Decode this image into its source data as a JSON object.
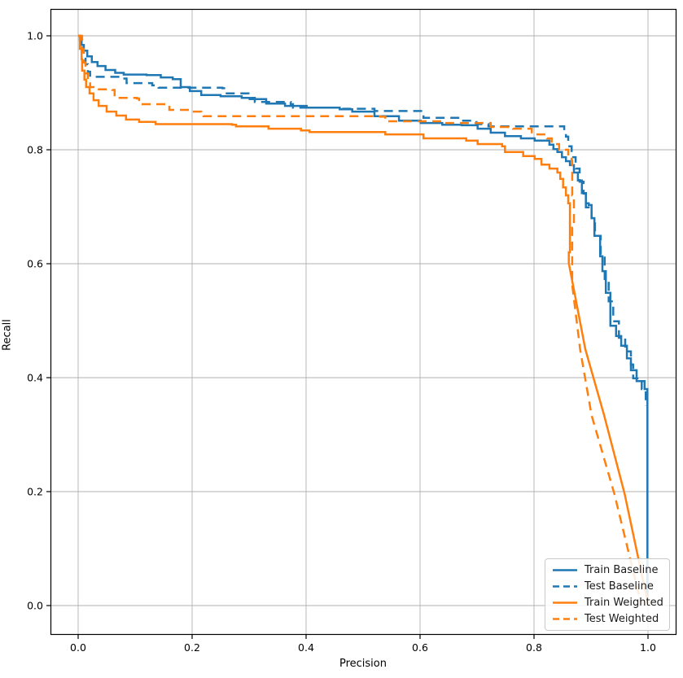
{
  "figure": {
    "background": "#ffffff"
  },
  "axes": {
    "xlabel": "Precision",
    "ylabel": "Recall",
    "x_tick_labels": [
      "0.0",
      "0.2",
      "0.4",
      "0.6",
      "0.8",
      "1.0"
    ],
    "y_tick_labels": [
      "0.0",
      "0.2",
      "0.4",
      "0.6",
      "0.8",
      "1.0"
    ]
  },
  "colors": {
    "baseline": "#1f77b4",
    "weighted": "#ff7f0e",
    "grid": "#b0b0b0",
    "spine": "#000000"
  },
  "chart_data": {
    "type": "line",
    "title": "",
    "xlabel": "Precision",
    "ylabel": "Recall",
    "xlim": [
      -0.05,
      1.05
    ],
    "ylim": [
      -0.05,
      1.05
    ],
    "xticks": [
      0.0,
      0.2,
      0.4,
      0.6,
      0.8,
      1.0
    ],
    "yticks": [
      0.0,
      0.2,
      0.4,
      0.6,
      0.8,
      1.0
    ],
    "grid": true,
    "legend_position": "lower right",
    "series": [
      {
        "name": "Train Baseline",
        "color": "#1f77b4",
        "style": "solid",
        "points": [
          [
            0.0,
            1.0
          ],
          [
            0.003,
            0.993
          ],
          [
            0.006,
            0.984
          ],
          [
            0.01,
            0.974
          ],
          [
            0.016,
            0.964
          ],
          [
            0.024,
            0.954
          ],
          [
            0.034,
            0.947
          ],
          [
            0.048,
            0.94
          ],
          [
            0.065,
            0.935
          ],
          [
            0.08,
            0.932
          ],
          [
            0.12,
            0.931
          ],
          [
            0.145,
            0.927
          ],
          [
            0.166,
            0.924
          ],
          [
            0.18,
            0.91
          ],
          [
            0.196,
            0.903
          ],
          [
            0.216,
            0.896
          ],
          [
            0.25,
            0.894
          ],
          [
            0.287,
            0.891
          ],
          [
            0.301,
            0.889
          ],
          [
            0.33,
            0.881
          ],
          [
            0.363,
            0.877
          ],
          [
            0.401,
            0.874
          ],
          [
            0.459,
            0.871
          ],
          [
            0.481,
            0.867
          ],
          [
            0.52,
            0.859
          ],
          [
            0.563,
            0.851
          ],
          [
            0.601,
            0.847
          ],
          [
            0.639,
            0.844
          ],
          [
            0.673,
            0.843
          ],
          [
            0.701,
            0.837
          ],
          [
            0.724,
            0.83
          ],
          [
            0.749,
            0.824
          ],
          [
            0.777,
            0.82
          ],
          [
            0.801,
            0.816
          ],
          [
            0.827,
            0.809
          ],
          [
            0.834,
            0.801
          ],
          [
            0.841,
            0.796
          ],
          [
            0.849,
            0.787
          ],
          [
            0.856,
            0.78
          ],
          [
            0.863,
            0.773
          ],
          [
            0.87,
            0.76
          ],
          [
            0.877,
            0.746
          ],
          [
            0.884,
            0.724
          ],
          [
            0.891,
            0.706
          ],
          [
            0.896,
            0.703
          ],
          [
            0.901,
            0.68
          ],
          [
            0.906,
            0.649
          ],
          [
            0.916,
            0.613
          ],
          [
            0.92,
            0.587
          ],
          [
            0.926,
            0.549
          ],
          [
            0.934,
            0.491
          ],
          [
            0.944,
            0.473
          ],
          [
            0.953,
            0.456
          ],
          [
            0.963,
            0.434
          ],
          [
            0.97,
            0.413
          ],
          [
            0.98,
            0.394
          ],
          [
            0.994,
            0.38
          ],
          [
            0.999,
            0.377
          ],
          [
            0.999,
            0.01
          ]
        ]
      },
      {
        "name": "Test Baseline",
        "color": "#1f77b4",
        "style": "dashed",
        "points": [
          [
            0.0,
            1.0
          ],
          [
            0.004,
            0.99
          ],
          [
            0.007,
            0.975
          ],
          [
            0.01,
            0.963
          ],
          [
            0.013,
            0.95
          ],
          [
            0.017,
            0.937
          ],
          [
            0.021,
            0.928
          ],
          [
            0.079,
            0.925
          ],
          [
            0.085,
            0.917
          ],
          [
            0.13,
            0.913
          ],
          [
            0.141,
            0.909
          ],
          [
            0.253,
            0.908
          ],
          [
            0.259,
            0.899
          ],
          [
            0.299,
            0.896
          ],
          [
            0.303,
            0.891
          ],
          [
            0.31,
            0.884
          ],
          [
            0.373,
            0.88
          ],
          [
            0.377,
            0.874
          ],
          [
            0.459,
            0.872
          ],
          [
            0.52,
            0.868
          ],
          [
            0.606,
            0.856
          ],
          [
            0.673,
            0.851
          ],
          [
            0.699,
            0.845
          ],
          [
            0.72,
            0.841
          ],
          [
            0.853,
            0.834
          ],
          [
            0.856,
            0.823
          ],
          [
            0.86,
            0.806
          ],
          [
            0.866,
            0.787
          ],
          [
            0.873,
            0.767
          ],
          [
            0.88,
            0.744
          ],
          [
            0.887,
            0.723
          ],
          [
            0.891,
            0.699
          ],
          [
            0.901,
            0.68
          ],
          [
            0.907,
            0.649
          ],
          [
            0.917,
            0.616
          ],
          [
            0.924,
            0.573
          ],
          [
            0.931,
            0.534
          ],
          [
            0.939,
            0.499
          ],
          [
            0.949,
            0.47
          ],
          [
            0.96,
            0.446
          ],
          [
            0.97,
            0.423
          ],
          [
            0.974,
            0.399
          ],
          [
            0.989,
            0.38
          ],
          [
            0.996,
            0.363
          ],
          [
            0.996,
            0.35
          ]
        ]
      },
      {
        "name": "Train Weighted",
        "color": "#ff7f0e",
        "style": "solid",
        "straight_from": 36,
        "points": [
          [
            0.0,
            1.0
          ],
          [
            0.003,
            0.977
          ],
          [
            0.006,
            0.959
          ],
          [
            0.007,
            0.939
          ],
          [
            0.011,
            0.923
          ],
          [
            0.014,
            0.91
          ],
          [
            0.02,
            0.899
          ],
          [
            0.027,
            0.887
          ],
          [
            0.036,
            0.877
          ],
          [
            0.05,
            0.867
          ],
          [
            0.067,
            0.86
          ],
          [
            0.084,
            0.853
          ],
          [
            0.107,
            0.849
          ],
          [
            0.136,
            0.845
          ],
          [
            0.27,
            0.844
          ],
          [
            0.277,
            0.841
          ],
          [
            0.334,
            0.837
          ],
          [
            0.391,
            0.834
          ],
          [
            0.406,
            0.831
          ],
          [
            0.539,
            0.827
          ],
          [
            0.606,
            0.82
          ],
          [
            0.681,
            0.816
          ],
          [
            0.701,
            0.81
          ],
          [
            0.744,
            0.806
          ],
          [
            0.749,
            0.796
          ],
          [
            0.781,
            0.789
          ],
          [
            0.801,
            0.784
          ],
          [
            0.813,
            0.774
          ],
          [
            0.827,
            0.767
          ],
          [
            0.841,
            0.76
          ],
          [
            0.846,
            0.749
          ],
          [
            0.851,
            0.734
          ],
          [
            0.856,
            0.72
          ],
          [
            0.86,
            0.706
          ],
          [
            0.863,
            0.663
          ],
          [
            0.863,
            0.62
          ],
          [
            0.861,
            0.601
          ],
          [
            0.89,
            0.45
          ],
          [
            0.923,
            0.334
          ],
          [
            0.959,
            0.196
          ],
          [
            1.0,
            0.003
          ]
        ]
      },
      {
        "name": "Test Weighted",
        "color": "#ff7f0e",
        "style": "dashed",
        "straight_from": 30,
        "points": [
          [
            0.0,
            1.0
          ],
          [
            0.007,
            0.977
          ],
          [
            0.01,
            0.953
          ],
          [
            0.013,
            0.934
          ],
          [
            0.017,
            0.92
          ],
          [
            0.021,
            0.91
          ],
          [
            0.027,
            0.906
          ],
          [
            0.06,
            0.905
          ],
          [
            0.064,
            0.891
          ],
          [
            0.103,
            0.89
          ],
          [
            0.107,
            0.88
          ],
          [
            0.156,
            0.879
          ],
          [
            0.16,
            0.87
          ],
          [
            0.199,
            0.867
          ],
          [
            0.216,
            0.863
          ],
          [
            0.22,
            0.859
          ],
          [
            0.53,
            0.858
          ],
          [
            0.539,
            0.85
          ],
          [
            0.639,
            0.847
          ],
          [
            0.724,
            0.84
          ],
          [
            0.763,
            0.837
          ],
          [
            0.796,
            0.827
          ],
          [
            0.823,
            0.82
          ],
          [
            0.831,
            0.81
          ],
          [
            0.844,
            0.8
          ],
          [
            0.86,
            0.79
          ],
          [
            0.866,
            0.781
          ],
          [
            0.867,
            0.72
          ],
          [
            0.87,
            0.663
          ],
          [
            0.867,
            0.581
          ],
          [
            0.867,
            0.563
          ],
          [
            0.881,
            0.449
          ],
          [
            0.901,
            0.334
          ],
          [
            0.941,
            0.196
          ],
          [
            0.988,
            0.003
          ]
        ]
      }
    ]
  },
  "legend": {
    "items": [
      "Train Baseline",
      "Test Baseline",
      "Train Weighted",
      "Test Weighted"
    ]
  }
}
